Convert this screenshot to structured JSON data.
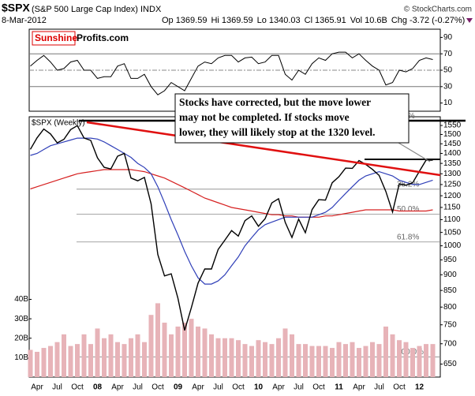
{
  "header": {
    "symbol": "$SPX",
    "name": "(S&P 500 Large Cap Index) INDX",
    "date": "8-Mar-2012",
    "quote": [
      {
        "label": "Op",
        "value": 1369.59
      },
      {
        "label": "Hi",
        "value": 1369.59
      },
      {
        "label": "Lo",
        "value": 1340.03
      },
      {
        "label": "Cl",
        "value": 1365.91
      },
      {
        "label": "Vol",
        "value": "10.6B"
      },
      {
        "label": "Chg",
        "value": "-3.72 (-0.27%)"
      }
    ],
    "copyright": "© StockCharts.com"
  },
  "logo": {
    "part1": "Sunshine",
    "part2": "Profits.com"
  },
  "chart_data": [
    {
      "type": "line",
      "color": "#000000",
      "values": [
        55,
        62,
        68,
        60,
        50,
        52,
        60,
        62,
        50,
        50,
        40,
        42,
        42,
        55,
        58,
        40,
        40,
        45,
        30,
        20,
        25,
        35,
        30,
        25,
        40,
        55,
        60,
        58,
        65,
        68,
        68,
        60,
        65,
        66,
        58,
        60,
        68,
        68,
        45,
        38,
        50,
        45,
        58,
        65,
        62,
        70,
        72,
        72,
        65,
        70,
        62,
        55,
        50,
        32,
        35,
        50,
        48,
        52,
        62,
        65,
        63
      ],
      "ylim": [
        0,
        100
      ],
      "yticks": [
        10,
        30,
        50,
        70,
        90
      ]
    },
    {
      "type": "line",
      "title": "$SPX (Weekly)",
      "log_scale": true,
      "categories": [
        null,
        "Apr",
        null,
        null,
        "Jul",
        null,
        null,
        "Oct",
        null,
        null,
        "08",
        null,
        null,
        "Apr",
        null,
        null,
        "Jul",
        null,
        null,
        "Oct",
        null,
        null,
        "09",
        null,
        null,
        "Apr",
        null,
        null,
        "Jul",
        null,
        null,
        "Oct",
        null,
        null,
        "10",
        null,
        null,
        "Apr",
        null,
        null,
        "Jul",
        null,
        null,
        "Oct",
        null,
        null,
        "11",
        null,
        null,
        "Apr",
        null,
        null,
        "Jul",
        null,
        null,
        "Oct",
        null,
        null,
        "12",
        null,
        null
      ],
      "series": [
        {
          "color": "#000000",
          "values": [
            1421,
            1482,
            1530,
            1503,
            1455,
            1474,
            1527,
            1549,
            1481,
            1468,
            1378,
            1331,
            1323,
            1386,
            1400,
            1280,
            1267,
            1283,
            1165,
            969,
            896,
            903,
            826,
            735,
            798,
            873,
            919,
            919,
            987,
            1021,
            1057,
            1036,
            1096,
            1115,
            1074,
            1104,
            1169,
            1187,
            1089,
            1031,
            1102,
            1049,
            1141,
            1183,
            1181,
            1258,
            1286,
            1327,
            1326,
            1364,
            1345,
            1321,
            1292,
            1219,
            1131,
            1253,
            1247,
            1258,
            1312,
            1366,
            1366
          ]
        },
        {
          "color": "#2f3fb8",
          "values": [
            1390,
            1400,
            1420,
            1440,
            1450,
            1460,
            1470,
            1480,
            1480,
            1480,
            1475,
            1460,
            1440,
            1420,
            1400,
            1380,
            1350,
            1330,
            1300,
            1240,
            1170,
            1100,
            1040,
            980,
            930,
            890,
            870,
            870,
            880,
            900,
            930,
            960,
            1000,
            1030,
            1060,
            1080,
            1090,
            1100,
            1110,
            1110,
            1110,
            1110,
            1110,
            1120,
            1130,
            1150,
            1180,
            1210,
            1240,
            1270,
            1290,
            1300,
            1310,
            1300,
            1290,
            1270,
            1260,
            1250,
            1250,
            1260,
            1270
          ]
        },
        {
          "color": "#d62020",
          "values": [
            1230,
            1240,
            1250,
            1260,
            1270,
            1280,
            1290,
            1300,
            1305,
            1310,
            1315,
            1320,
            1320,
            1320,
            1320,
            1320,
            1315,
            1310,
            1300,
            1290,
            1280,
            1265,
            1250,
            1235,
            1220,
            1205,
            1190,
            1180,
            1170,
            1160,
            1150,
            1145,
            1140,
            1135,
            1130,
            1125,
            1120,
            1120,
            1115,
            1115,
            1110,
            1110,
            1110,
            1110,
            1115,
            1115,
            1120,
            1125,
            1130,
            1135,
            1140,
            1140,
            1140,
            1140,
            1140,
            1135,
            1135,
            1135,
            1135,
            1135,
            1140
          ]
        },
        {
          "type": "bar",
          "axis": "y2",
          "color": "#e7b3b8",
          "values": [
            14,
            13,
            15,
            16,
            18,
            22,
            16,
            17,
            22,
            17,
            25,
            20,
            22,
            18,
            17,
            20,
            22,
            18,
            32,
            38,
            28,
            22,
            26,
            28,
            30,
            26,
            25,
            22,
            20,
            20,
            20,
            19,
            17,
            16,
            19,
            18,
            17,
            20,
            25,
            22,
            17,
            17,
            16,
            16,
            16,
            15,
            18,
            17,
            18,
            15,
            16,
            18,
            17,
            26,
            22,
            19,
            18,
            15,
            16,
            17,
            17
          ]
        }
      ],
      "ylim": [
        620,
        1600
      ],
      "yticks": [
        650,
        700,
        750,
        800,
        850,
        900,
        950,
        1000,
        1050,
        1100,
        1150,
        1200,
        1250,
        1300,
        1350,
        1400,
        1450,
        1500,
        1550
      ],
      "y2lim": [
        0,
        134
      ],
      "y2ticks": [
        {
          "value": 10,
          "label": "10B"
        },
        {
          "value": 20,
          "label": "20B"
        },
        {
          "value": 30,
          "label": "30B"
        },
        {
          "value": 40,
          "label": "40B"
        }
      ],
      "fib": {
        "levels": [
          1576,
          1229,
          1122,
          1014,
          667
        ],
        "labels": [
          "0.0%",
          "38.2%",
          "50.0%",
          "61.8%",
          "100.0%"
        ]
      },
      "annotation": [
        "Stocks have corrected, but the move lower",
        "may not be completed. If stocks move",
        "lower, they will likely stop at the 1320 level."
      ]
    }
  ]
}
